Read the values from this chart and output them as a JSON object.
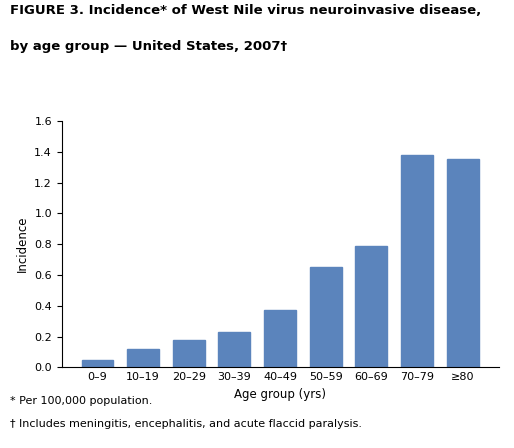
{
  "title_line1": "FIGURE 3. Incidence* of West Nile virus neuroinvasive disease,",
  "title_line2": "by age group — United States, 2007†",
  "categories": [
    "0–9",
    "10–19",
    "20–29",
    "30–39",
    "40–49",
    "50–59",
    "60–69",
    "70–79",
    "≥80"
  ],
  "values": [
    0.05,
    0.12,
    0.18,
    0.23,
    0.37,
    0.65,
    0.79,
    1.38,
    1.35
  ],
  "bar_color": "#5b84bc",
  "xlabel": "Age group (yrs)",
  "ylabel": "Incidence",
  "ylim": [
    0,
    1.6
  ],
  "yticks": [
    0.0,
    0.2,
    0.4,
    0.6,
    0.8,
    1.0,
    1.2,
    1.4,
    1.6
  ],
  "footnote1": "* Per 100,000 population.",
  "footnote2": "† Includes meningitis, encephalitis, and acute flaccid paralysis.",
  "background_color": "#ffffff",
  "title_fontsize": 9.5,
  "axis_fontsize": 8.5,
  "tick_fontsize": 8,
  "footnote_fontsize": 8
}
